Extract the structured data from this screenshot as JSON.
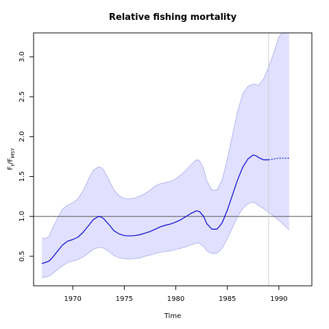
{
  "chart_data": {
    "type": "line",
    "title": "Relative fishing mortality",
    "xlabel": "Time",
    "ylabel_main": "F",
    "ylabel_sub_num": "t",
    "ylabel_divider": "/F",
    "ylabel_sub_den": "MSY",
    "xlim": [
      1966.2,
      1993.2
    ],
    "ylim": [
      0.13,
      3.3
    ],
    "xticks": [
      1970,
      1975,
      1980,
      1985,
      1990
    ],
    "yticks": [
      0.5,
      1.0,
      1.5,
      2.0,
      2.5,
      3.0
    ],
    "xtick_labels": [
      "1970",
      "1975",
      "1980",
      "1985",
      "1990"
    ],
    "ytick_labels": [
      "0.5",
      "1.0",
      "1.5",
      "2.0",
      "2.5",
      "3.0"
    ],
    "reference_line_y": 1.0,
    "vertical_marker_x": 1989,
    "colors": {
      "line": "#0000cd",
      "band_fill": "#e1e1ff",
      "band_edge": "#a8a8e8",
      "reference": "#555555",
      "marker": "#cccccc"
    },
    "series": [
      {
        "x": [
          1967.0,
          1967.3,
          1967.7,
          1968.0,
          1968.5,
          1969.0,
          1969.5,
          1970.0,
          1970.5,
          1971.0,
          1971.5,
          1972.0,
          1972.5,
          1972.8,
          1973.0,
          1973.5,
          1974.0,
          1974.5,
          1975.0,
          1975.5,
          1976.0,
          1976.5,
          1977.0,
          1977.5,
          1978.0,
          1978.5,
          1979.0,
          1979.5,
          1980.0,
          1980.5,
          1981.0,
          1981.5,
          1982.0,
          1982.3,
          1982.7,
          1983.0,
          1983.5,
          1984.0,
          1984.5,
          1985.0,
          1985.5,
          1986.0,
          1986.5,
          1987.0,
          1987.5,
          1987.8,
          1988.0,
          1988.5,
          1989.0
        ],
        "y": [
          0.41,
          0.42,
          0.44,
          0.48,
          0.56,
          0.64,
          0.69,
          0.71,
          0.74,
          0.8,
          0.88,
          0.96,
          1.0,
          0.99,
          0.97,
          0.9,
          0.82,
          0.78,
          0.76,
          0.755,
          0.76,
          0.77,
          0.79,
          0.81,
          0.84,
          0.87,
          0.89,
          0.905,
          0.93,
          0.96,
          1.0,
          1.04,
          1.07,
          1.06,
          1.0,
          0.91,
          0.84,
          0.84,
          0.92,
          1.08,
          1.27,
          1.46,
          1.62,
          1.72,
          1.77,
          1.76,
          1.74,
          1.71,
          1.71
        ]
      },
      {
        "x": [
          1989.0,
          1989.5,
          1990.0,
          1990.5,
          1991.0
        ],
        "y": [
          1.71,
          1.72,
          1.73,
          1.73,
          1.73
        ]
      }
    ],
    "band": {
      "x": [
        1967.0,
        1967.3,
        1967.7,
        1968.0,
        1968.5,
        1969.0,
        1969.5,
        1970.0,
        1970.5,
        1971.0,
        1971.5,
        1972.0,
        1972.5,
        1972.8,
        1973.0,
        1973.5,
        1974.0,
        1974.5,
        1975.0,
        1975.5,
        1976.0,
        1976.5,
        1977.0,
        1977.5,
        1978.0,
        1978.5,
        1979.0,
        1979.5,
        1980.0,
        1980.5,
        1981.0,
        1981.5,
        1982.0,
        1982.3,
        1982.7,
        1983.0,
        1983.5,
        1984.0,
        1984.5,
        1985.0,
        1985.5,
        1986.0,
        1986.5,
        1987.0,
        1987.5,
        1987.8,
        1988.0,
        1988.5,
        1989.0,
        1989.5,
        1990.0,
        1990.5,
        1991.0
      ],
      "upper": [
        0.73,
        0.72,
        0.75,
        0.84,
        0.97,
        1.09,
        1.14,
        1.17,
        1.22,
        1.32,
        1.46,
        1.58,
        1.62,
        1.61,
        1.58,
        1.46,
        1.33,
        1.26,
        1.225,
        1.22,
        1.23,
        1.255,
        1.285,
        1.33,
        1.38,
        1.41,
        1.425,
        1.44,
        1.47,
        1.52,
        1.58,
        1.65,
        1.71,
        1.7,
        1.6,
        1.45,
        1.33,
        1.33,
        1.46,
        1.72,
        2.02,
        2.32,
        2.54,
        2.63,
        2.66,
        2.65,
        2.64,
        2.72,
        2.87,
        3.05,
        3.25,
        3.32,
        3.36
      ],
      "lower": [
        0.23,
        0.24,
        0.25,
        0.28,
        0.33,
        0.38,
        0.42,
        0.44,
        0.46,
        0.49,
        0.54,
        0.59,
        0.61,
        0.61,
        0.6,
        0.56,
        0.51,
        0.48,
        0.47,
        0.465,
        0.47,
        0.48,
        0.5,
        0.515,
        0.535,
        0.55,
        0.56,
        0.57,
        0.585,
        0.6,
        0.62,
        0.645,
        0.665,
        0.665,
        0.62,
        0.57,
        0.535,
        0.54,
        0.6,
        0.72,
        0.86,
        1.0,
        1.1,
        1.16,
        1.18,
        1.16,
        1.14,
        1.1,
        1.05,
        1.0,
        0.95,
        0.89,
        0.83
      ]
    }
  }
}
